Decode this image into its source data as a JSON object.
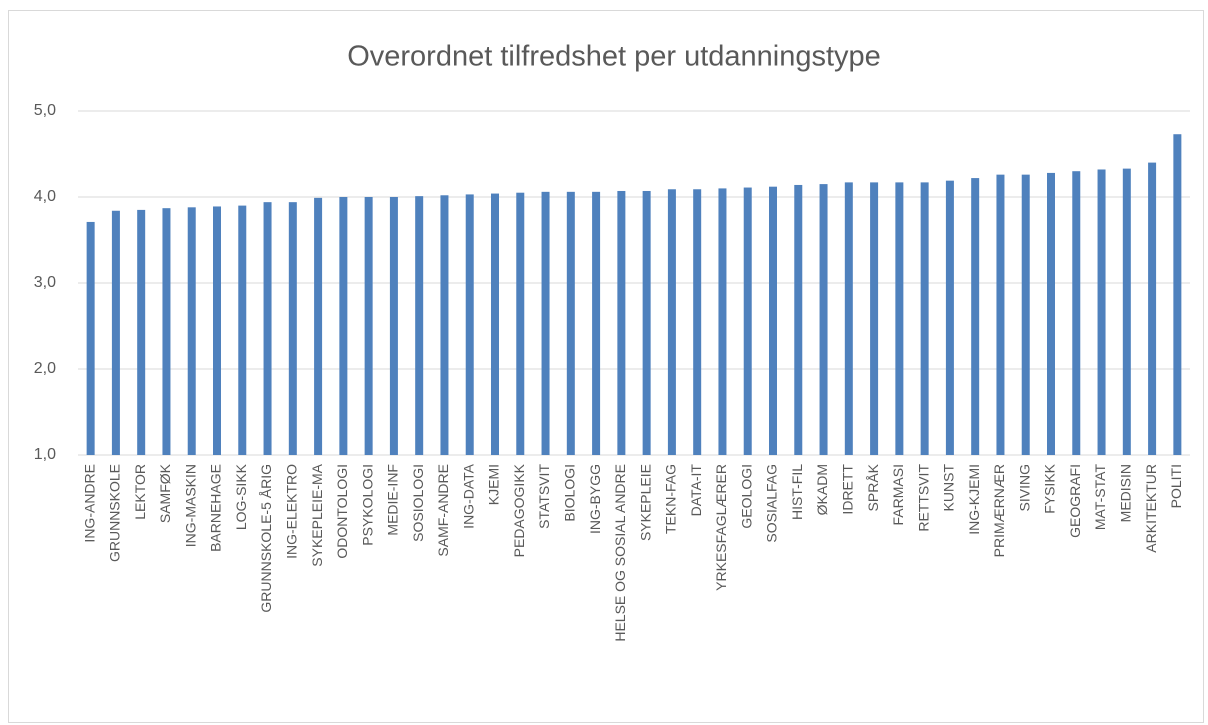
{
  "chart_data": {
    "type": "bar",
    "title": "Overordnet tilfredshet per utdanningstype",
    "categories": [
      "ING-ANDRE",
      "GRUNNSKOLE",
      "LEKTOR",
      "SAMFØK",
      "ING-MASKIN",
      "BARNEHAGE",
      "LOG-SIKK",
      "GRUNNSKOLE-5 ÅRIG",
      "ING-ELEKTRO",
      "SYKEPLEIE-MA",
      "ODONTOLOGI",
      "PSYKOLOGI",
      "MEDIE-INF",
      "SOSIOLOGI",
      "SAMF-ANDRE",
      "ING-DATA",
      "KJEMI",
      "PEDAGOGIKK",
      "STATSVIT",
      "BIOLOGI",
      "ING-BYGG",
      "HELSE OG SOSIAL ANDRE",
      "SYKEPLEIE",
      "TEKN-FAG",
      "DATA-IT",
      "YRKESFAGLÆRER",
      "GEOLOGI",
      "SOSIALFAG",
      "HIST-FIL",
      "ØKADM",
      "IDRETT",
      "SPRÅK",
      "FARMASI",
      "RETTSVIT",
      "KUNST",
      "ING-KJEMI",
      "PRIMÆRNÆR",
      "SIVING",
      "FYSIKK",
      "GEOGRAFI",
      "MAT-STAT",
      "MEDISIN",
      "ARKITEKTUR",
      "POLITI"
    ],
    "values": [
      3.71,
      3.84,
      3.85,
      3.87,
      3.88,
      3.89,
      3.9,
      3.94,
      3.94,
      3.99,
      4.0,
      4.0,
      4.0,
      4.01,
      4.02,
      4.03,
      4.04,
      4.05,
      4.06,
      4.06,
      4.06,
      4.07,
      4.07,
      4.09,
      4.09,
      4.1,
      4.11,
      4.12,
      4.14,
      4.15,
      4.17,
      4.17,
      4.17,
      4.17,
      4.19,
      4.22,
      4.26,
      4.26,
      4.28,
      4.3,
      4.32,
      4.33,
      4.4,
      4.73
    ],
    "color": "#4f81bd",
    "ylim": [
      1,
      5
    ],
    "yticks": [
      {
        "value": 1,
        "label": "1,0"
      },
      {
        "value": 2,
        "label": "2,0"
      },
      {
        "value": 3,
        "label": "3,0"
      },
      {
        "value": 4,
        "label": "4,0"
      },
      {
        "value": 5,
        "label": "5,0"
      }
    ],
    "grid": true
  }
}
